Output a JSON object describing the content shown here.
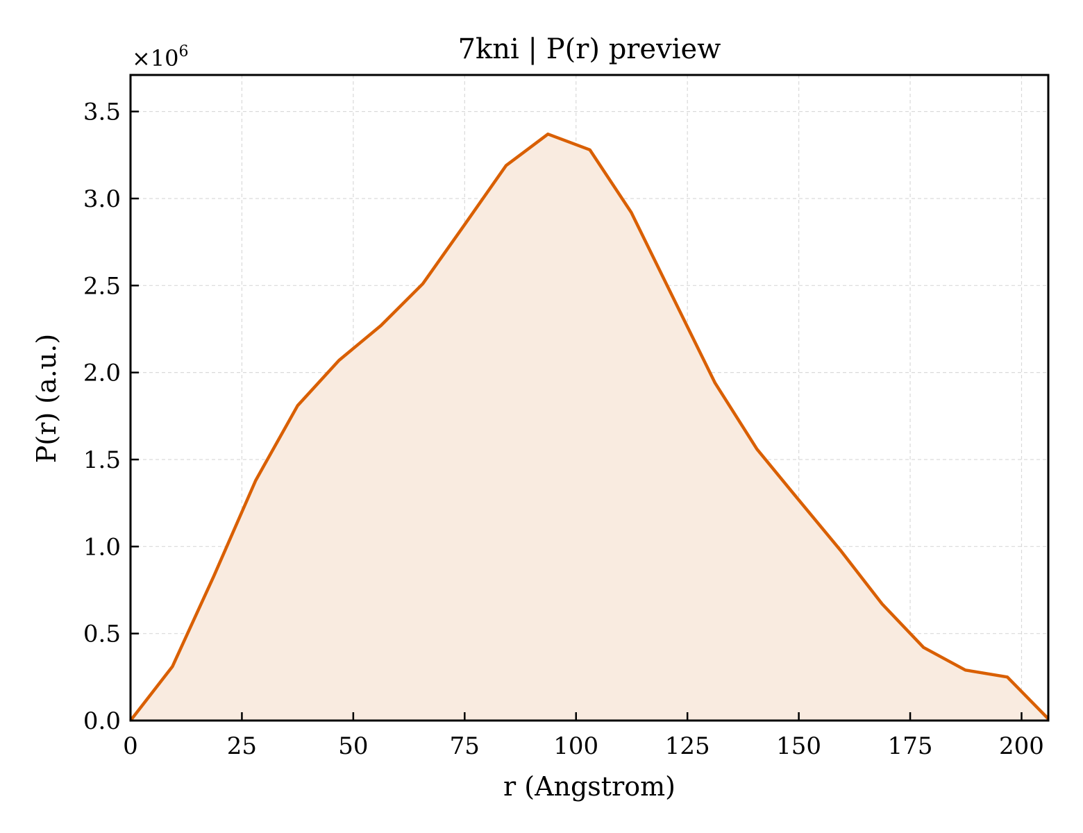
{
  "chart_data": {
    "type": "area",
    "title": "7kni | P(r) preview",
    "xlabel": "r (Angstrom)",
    "ylabel": "P(r) (a.u.)",
    "y_multiplier_label": "×10",
    "y_multiplier_exponent": "6",
    "xlim": [
      0,
      206
    ],
    "ylim": [
      0,
      3.71
    ],
    "xticks": [
      0,
      25,
      50,
      75,
      100,
      125,
      150,
      175,
      200
    ],
    "yticks": [
      0.0,
      0.5,
      1.0,
      1.5,
      2.0,
      2.5,
      3.0,
      3.5
    ],
    "grid": true,
    "line_color": "#d95f02",
    "fill_color": "#f9ebe0",
    "series": [
      {
        "x": [
          0,
          9.4,
          18.7,
          28.1,
          37.5,
          46.8,
          56.2,
          65.6,
          75.0,
          84.3,
          93.7,
          103.1,
          112.4,
          121.8,
          131.2,
          140.6,
          149.9,
          159.3,
          168.7,
          178.0,
          187.4,
          196.8,
          206
        ],
        "y": [
          0.0,
          0.31,
          0.83,
          1.38,
          1.81,
          2.07,
          2.27,
          2.51,
          2.85,
          3.19,
          3.37,
          3.28,
          2.92,
          2.43,
          1.94,
          1.56,
          1.27,
          0.98,
          0.67,
          0.42,
          0.29,
          0.25,
          0.01
        ]
      }
    ]
  }
}
